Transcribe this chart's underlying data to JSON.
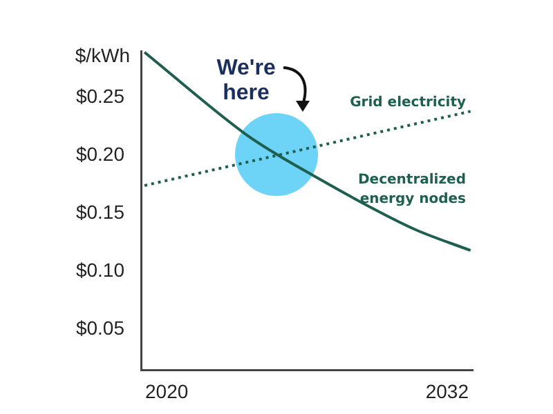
{
  "chart_data": {
    "type": "line",
    "ylabel": "$/kWh",
    "xlim": [
      2018.9,
      2033.1
    ],
    "xticks": [
      2020,
      2032
    ],
    "ylim": [
      0.015,
      0.29
    ],
    "yticks": [
      {
        "value": 0.05,
        "label": "$0.05"
      },
      {
        "value": 0.1,
        "label": "$0.10"
      },
      {
        "value": 0.15,
        "label": "$0.15"
      },
      {
        "value": 0.2,
        "label": "$0.20"
      },
      {
        "value": 0.25,
        "label": "$0.25"
      }
    ],
    "series": [
      {
        "name": "Grid electricity",
        "color": "#1f5f50",
        "line_style": "dotted",
        "x": [
          2019.05,
          2033.0
        ],
        "values": [
          0.174,
          0.238
        ]
      },
      {
        "name": "Decentralized energy nodes",
        "color": "#1f5f50",
        "line_style": "solid",
        "x": [
          2019.05,
          2023.33,
          2024.7,
          2026.24,
          2028.56,
          2030.64,
          2033.0
        ],
        "values": [
          0.289,
          0.219,
          0.201,
          0.183,
          0.157,
          0.136,
          0.118
        ]
      }
    ],
    "annotations": [
      {
        "text": "We're here",
        "x": 2024.7,
        "y": 0.201
      }
    ],
    "grid": false,
    "legend": false,
    "marker": "none"
  }
}
